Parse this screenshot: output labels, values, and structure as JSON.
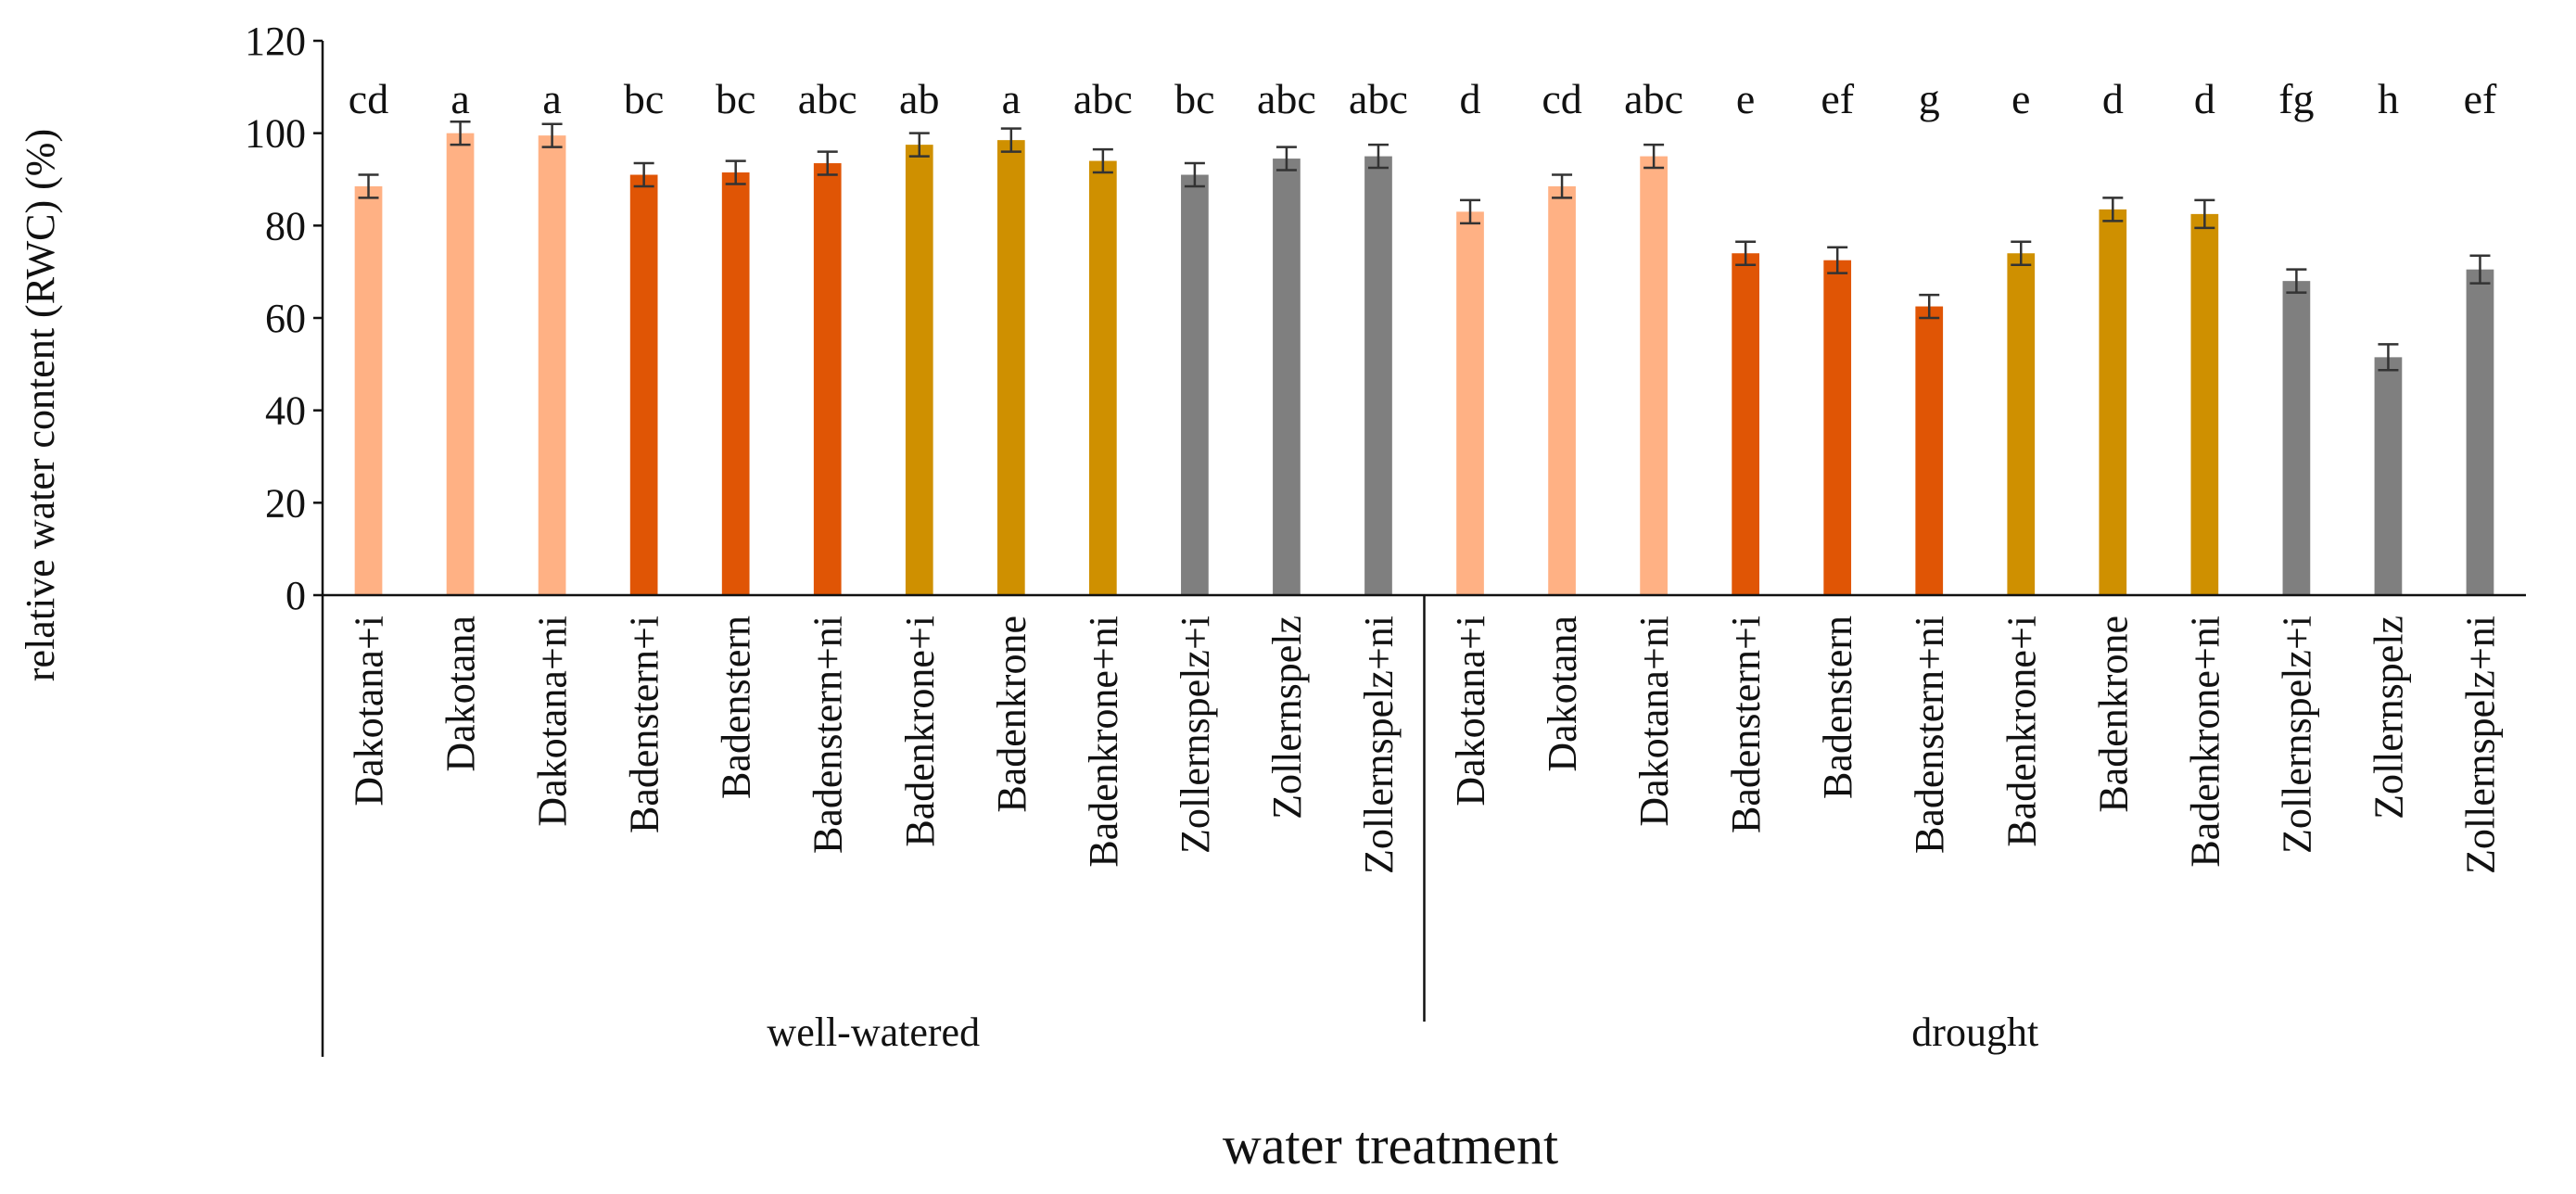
{
  "chart_data": {
    "type": "bar",
    "title": "",
    "ylabel": "relative water content (RWC) (%)",
    "xlabel": "water treatment",
    "ylim": [
      0,
      120
    ],
    "yticks": [
      0,
      20,
      40,
      60,
      80,
      100,
      120
    ],
    "grid": false,
    "legend": "none",
    "colors": {
      "Dakotana": "#FFB184",
      "Badenstern": "#E05505",
      "Badenkrone": "#CF9000",
      "Zollernspelz": "#7F7F7F"
    },
    "groups": [
      {
        "name": "well-watered",
        "bars": [
          {
            "category": "Dakotana+i",
            "cultivar": "Dakotana",
            "value": 88.5,
            "error": 2.5,
            "letter": "cd"
          },
          {
            "category": "Dakotana",
            "cultivar": "Dakotana",
            "value": 100.0,
            "error": 2.5,
            "letter": "a"
          },
          {
            "category": "Dakotana+ni",
            "cultivar": "Dakotana",
            "value": 99.5,
            "error": 2.5,
            "letter": "a"
          },
          {
            "category": "Badenstern+i",
            "cultivar": "Badenstern",
            "value": 91.0,
            "error": 2.5,
            "letter": "bc"
          },
          {
            "category": "Badenstern",
            "cultivar": "Badenstern",
            "value": 91.5,
            "error": 2.5,
            "letter": "bc"
          },
          {
            "category": "Badenstern+ni",
            "cultivar": "Badenstern",
            "value": 93.5,
            "error": 2.5,
            "letter": "abc"
          },
          {
            "category": "Badenkrone+i",
            "cultivar": "Badenkrone",
            "value": 97.5,
            "error": 2.5,
            "letter": "ab"
          },
          {
            "category": "Badenkrone",
            "cultivar": "Badenkrone",
            "value": 98.5,
            "error": 2.5,
            "letter": "a"
          },
          {
            "category": "Badenkrone+ni",
            "cultivar": "Badenkrone",
            "value": 94.0,
            "error": 2.5,
            "letter": "abc"
          },
          {
            "category": "Zollernspelz+i",
            "cultivar": "Zollernspelz",
            "value": 91.0,
            "error": 2.5,
            "letter": "bc"
          },
          {
            "category": "Zollernspelz",
            "cultivar": "Zollernspelz",
            "value": 94.5,
            "error": 2.5,
            "letter": "abc"
          },
          {
            "category": "Zollernspelz+ni",
            "cultivar": "Zollernspelz",
            "value": 95.0,
            "error": 2.5,
            "letter": "abc"
          }
        ]
      },
      {
        "name": "drought",
        "bars": [
          {
            "category": "Dakotana+i",
            "cultivar": "Dakotana",
            "value": 83.0,
            "error": 2.5,
            "letter": "d"
          },
          {
            "category": "Dakotana",
            "cultivar": "Dakotana",
            "value": 88.5,
            "error": 2.5,
            "letter": "cd"
          },
          {
            "category": "Dakotana+ni",
            "cultivar": "Dakotana",
            "value": 95.0,
            "error": 2.5,
            "letter": "abc"
          },
          {
            "category": "Badenstern+i",
            "cultivar": "Badenstern",
            "value": 74.0,
            "error": 2.5,
            "letter": "e"
          },
          {
            "category": "Badenstern",
            "cultivar": "Badenstern",
            "value": 72.5,
            "error": 2.8,
            "letter": "ef"
          },
          {
            "category": "Badenstern+ni",
            "cultivar": "Badenstern",
            "value": 62.5,
            "error": 2.5,
            "letter": "g"
          },
          {
            "category": "Badenkrone+i",
            "cultivar": "Badenkrone",
            "value": 74.0,
            "error": 2.5,
            "letter": "e"
          },
          {
            "category": "Badenkrone",
            "cultivar": "Badenkrone",
            "value": 83.5,
            "error": 2.5,
            "letter": "d"
          },
          {
            "category": "Badenkrone+ni",
            "cultivar": "Badenkrone",
            "value": 82.5,
            "error": 3.0,
            "letter": "d"
          },
          {
            "category": "Zollernspelz+i",
            "cultivar": "Zollernspelz",
            "value": 68.0,
            "error": 2.5,
            "letter": "fg"
          },
          {
            "category": "Zollernspelz",
            "cultivar": "Zollernspelz",
            "value": 51.5,
            "error": 2.8,
            "letter": "h"
          },
          {
            "category": "Zollernspelz+ni",
            "cultivar": "Zollernspelz",
            "value": 70.5,
            "error": 3.0,
            "letter": "ef"
          }
        ]
      }
    ]
  }
}
